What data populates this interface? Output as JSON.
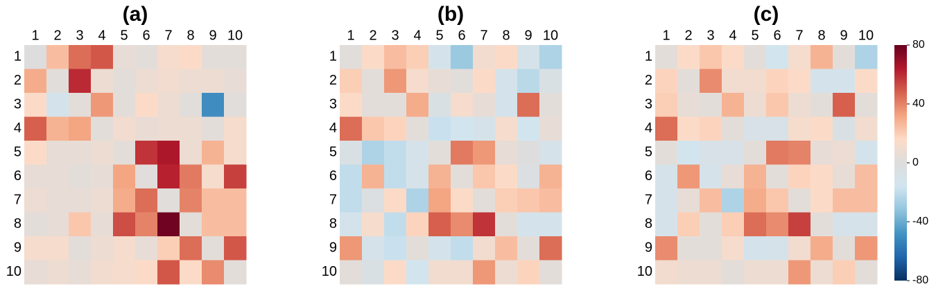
{
  "chart_data": [
    {
      "type": "heatmap",
      "title": "(a)",
      "x_categories": [
        "1",
        "2",
        "3",
        "4",
        "5",
        "6",
        "7",
        "8",
        "9",
        "10"
      ],
      "y_categories": [
        "1",
        "2",
        "3",
        "4",
        "5",
        "6",
        "7",
        "8",
        "9",
        "10"
      ],
      "values": [
        [
          0,
          25,
          45,
          50,
          5,
          3,
          12,
          15,
          3,
          3
        ],
        [
          30,
          2,
          60,
          8,
          3,
          8,
          10,
          8,
          8,
          5
        ],
        [
          15,
          -12,
          3,
          35,
          3,
          15,
          8,
          2,
          -50,
          2
        ],
        [
          48,
          28,
          32,
          3,
          10,
          6,
          8,
          8,
          3,
          12
        ],
        [
          15,
          5,
          5,
          8,
          3,
          58,
          65,
          8,
          28,
          12
        ],
        [
          5,
          5,
          3,
          5,
          32,
          2,
          62,
          42,
          12,
          55
        ],
        [
          8,
          5,
          5,
          8,
          30,
          45,
          2,
          40,
          25,
          25
        ],
        [
          3,
          5,
          22,
          5,
          52,
          40,
          78,
          3,
          25,
          25
        ],
        [
          12,
          12,
          3,
          8,
          12,
          5,
          20,
          45,
          3,
          50
        ],
        [
          5,
          8,
          5,
          10,
          12,
          15,
          50,
          15,
          38,
          3
        ]
      ]
    },
    {
      "type": "heatmap",
      "title": "(b)",
      "x_categories": [
        "1",
        "2",
        "3",
        "4",
        "5",
        "6",
        "7",
        "8",
        "9",
        "10"
      ],
      "y_categories": [
        "1",
        "2",
        "3",
        "4",
        "5",
        "6",
        "7",
        "8",
        "9",
        "10"
      ],
      "values": [
        [
          2,
          15,
          25,
          20,
          -12,
          -30,
          10,
          15,
          -10,
          -25
        ],
        [
          20,
          3,
          35,
          12,
          5,
          2,
          15,
          -12,
          -22,
          -5
        ],
        [
          15,
          3,
          3,
          30,
          -5,
          12,
          5,
          -12,
          45,
          3
        ],
        [
          45,
          22,
          18,
          3,
          -18,
          -15,
          -10,
          12,
          -15,
          5
        ],
        [
          -5,
          -25,
          -20,
          -10,
          3,
          42,
          35,
          5,
          0,
          -10
        ],
        [
          -20,
          28,
          -20,
          -10,
          28,
          3,
          22,
          15,
          -3,
          28
        ],
        [
          -20,
          -3,
          15,
          -25,
          32,
          15,
          3,
          20,
          22,
          25
        ],
        [
          -12,
          12,
          -20,
          18,
          48,
          38,
          58,
          3,
          -12,
          -12
        ],
        [
          35,
          -10,
          -18,
          3,
          -12,
          -20,
          10,
          25,
          3,
          45
        ],
        [
          3,
          -5,
          15,
          -15,
          10,
          10,
          35,
          8,
          18,
          3
        ]
      ]
    },
    {
      "type": "heatmap",
      "title": "(c)",
      "x_categories": [
        "1",
        "2",
        "3",
        "4",
        "5",
        "6",
        "7",
        "8",
        "9",
        "10"
      ],
      "y_categories": [
        "1",
        "2",
        "3",
        "4",
        "5",
        "6",
        "7",
        "8",
        "9",
        "10"
      ],
      "values": [
        [
          3,
          15,
          22,
          15,
          3,
          -15,
          12,
          28,
          3,
          -25
        ],
        [
          18,
          3,
          38,
          10,
          10,
          18,
          15,
          -12,
          -12,
          15
        ],
        [
          20,
          5,
          3,
          28,
          8,
          22,
          8,
          3,
          48,
          3
        ],
        [
          45,
          15,
          18,
          3,
          -8,
          -8,
          12,
          15,
          -5,
          10
        ],
        [
          3,
          -15,
          -8,
          -8,
          3,
          42,
          40,
          5,
          8,
          -12
        ],
        [
          -10,
          35,
          -10,
          5,
          28,
          3,
          18,
          15,
          5,
          25
        ],
        [
          -10,
          5,
          25,
          -25,
          30,
          22,
          3,
          15,
          25,
          25
        ],
        [
          -10,
          20,
          3,
          20,
          45,
          38,
          55,
          3,
          -10,
          -10
        ],
        [
          38,
          3,
          3,
          12,
          -12,
          -10,
          10,
          30,
          3,
          35
        ],
        [
          10,
          8,
          8,
          3,
          8,
          8,
          35,
          8,
          20,
          3
        ]
      ],
      "colorbar": {
        "lim": [
          -80,
          80
        ],
        "ticks": [
          -80,
          -40,
          0,
          40,
          80
        ],
        "colormap": [
          "#053061",
          "#2166ac",
          "#4393c3",
          "#92c5de",
          "#d1e5f0",
          "#dddddd",
          "#fddbc7",
          "#f4a582",
          "#d6604d",
          "#b2182b",
          "#67001f"
        ]
      }
    }
  ]
}
